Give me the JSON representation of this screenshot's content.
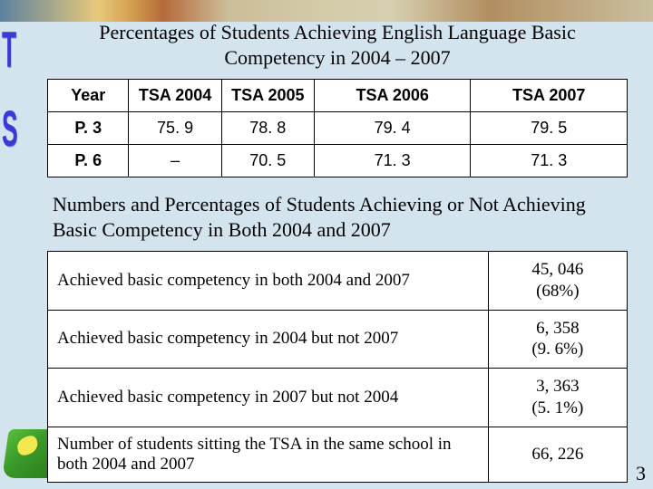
{
  "title": "Percentages of Students Achieving English Language Basic Competency in 2004 – 2007",
  "table1": {
    "headers": [
      "Year",
      "TSA 2004",
      "TSA 2005",
      "TSA 2006",
      "TSA 2007"
    ],
    "rows": [
      {
        "label": "P. 3",
        "cells": [
          "75. 9",
          "78. 8",
          "79. 4",
          "79. 5"
        ]
      },
      {
        "label": "P. 6",
        "cells": [
          "–",
          "70. 5",
          "71. 3",
          "71. 3"
        ]
      }
    ]
  },
  "subtitle": "Numbers and Percentages of Students Achieving or Not Achieving Basic Competency in Both 2004 and 2007",
  "table2": {
    "rows": [
      {
        "label": "Achieved basic competency in both 2004 and 2007",
        "value": "45, 046\n(68%)"
      },
      {
        "label": "Achieved basic competency in 2004 but not 2007",
        "value": "6, 358\n(9. 6%)"
      },
      {
        "label": "Achieved basic competency in 2007 but not 2004",
        "value": "3, 363\n(5. 1%)"
      },
      {
        "label": "Number of students sitting the TSA in the same school in both 2004 and 2007",
        "value": "66, 226"
      }
    ]
  },
  "sideLetters": {
    "top": "T",
    "bottom": "S"
  },
  "pageNumber": "3"
}
